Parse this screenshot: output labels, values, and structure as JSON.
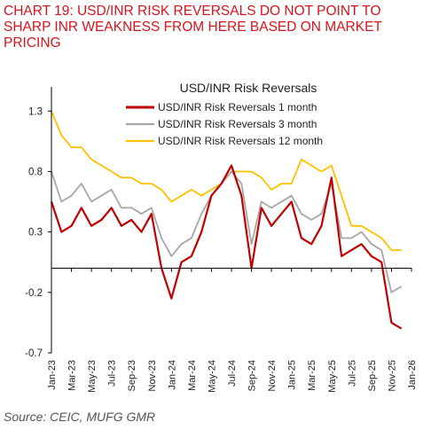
{
  "headline": "CHART 19: USD/INR RISK REVERSALS DO NOT POINT TO SHARP INR WEAKNESS FROM HERE BASED ON MARKET PRICING",
  "source": "Source: CEIC, MUFG GMR",
  "colors": {
    "headline": "#d9141b",
    "one_month": "#c00000",
    "three_month": "#a6a6a6",
    "twelve_month": "#ffc000",
    "axis": "#000000"
  },
  "chart_data": {
    "type": "line",
    "title": "USD/INR Risk Reversals",
    "xlabel": "",
    "ylabel": "",
    "ylim": [
      -0.7,
      1.5
    ],
    "yticks": [
      -0.7,
      -0.2,
      0.3,
      0.8,
      1.3
    ],
    "ytick_labels": [
      "-0.7",
      "-0.2",
      "0.3",
      "0.8",
      "1.3"
    ],
    "xlim": [
      "2023-01",
      "2026-01"
    ],
    "xtick_labels": [
      "Jan-23",
      "Mar-23",
      "May-23",
      "Jul-23",
      "Sep-23",
      "Nov-23",
      "Jan-24",
      "Mar-24",
      "May-24",
      "Jul-24",
      "Sep-24",
      "Nov-24",
      "Jan-25",
      "Mar-25",
      "May-25",
      "Jul-25",
      "Sep-25",
      "Nov-25",
      "Jan-26"
    ],
    "grid": false,
    "legend_position": "top-center",
    "x": [
      "2023-01",
      "2023-02",
      "2023-03",
      "2023-04",
      "2023-05",
      "2023-06",
      "2023-07",
      "2023-08",
      "2023-09",
      "2023-10",
      "2023-11",
      "2023-12",
      "2024-01",
      "2024-02",
      "2024-03",
      "2024-04",
      "2024-05",
      "2024-06",
      "2024-07",
      "2024-08",
      "2024-09",
      "2024-10",
      "2024-11",
      "2024-12",
      "2025-01",
      "2025-02",
      "2025-03",
      "2025-04",
      "2025-05",
      "2025-06",
      "2025-07",
      "2025-08",
      "2025-09",
      "2025-10",
      "2025-11",
      "2025-12"
    ],
    "series": [
      {
        "name": "USD/INR Risk Reversals 1 month",
        "values": [
          0.55,
          0.3,
          0.35,
          0.5,
          0.35,
          0.4,
          0.5,
          0.35,
          0.4,
          0.3,
          0.45,
          0.0,
          -0.25,
          0.05,
          0.1,
          0.3,
          0.6,
          0.7,
          0.85,
          0.6,
          0.0,
          0.5,
          0.35,
          0.45,
          0.55,
          0.25,
          0.2,
          0.35,
          0.75,
          0.1,
          0.15,
          0.2,
          0.1,
          0.05,
          -0.45,
          -0.5
        ]
      },
      {
        "name": "USD/INR Risk Reversals 3 month",
        "values": [
          0.8,
          0.55,
          0.6,
          0.7,
          0.55,
          0.6,
          0.65,
          0.5,
          0.5,
          0.45,
          0.5,
          0.25,
          0.1,
          0.2,
          0.25,
          0.45,
          0.6,
          0.7,
          0.8,
          0.7,
          0.2,
          0.55,
          0.5,
          0.55,
          0.6,
          0.45,
          0.4,
          0.45,
          0.7,
          0.25,
          0.25,
          0.3,
          0.2,
          0.15,
          -0.2,
          -0.15
        ]
      },
      {
        "name": "USD/INR Risk Reversals 12 month",
        "values": [
          1.3,
          1.1,
          1.0,
          1.0,
          0.9,
          0.85,
          0.8,
          0.75,
          0.75,
          0.7,
          0.7,
          0.65,
          0.55,
          0.6,
          0.65,
          0.6,
          0.65,
          0.7,
          0.8,
          0.8,
          0.8,
          0.75,
          0.65,
          0.7,
          0.7,
          0.9,
          0.85,
          0.8,
          0.85,
          0.6,
          0.35,
          0.35,
          0.3,
          0.25,
          0.15,
          0.15
        ]
      }
    ]
  }
}
